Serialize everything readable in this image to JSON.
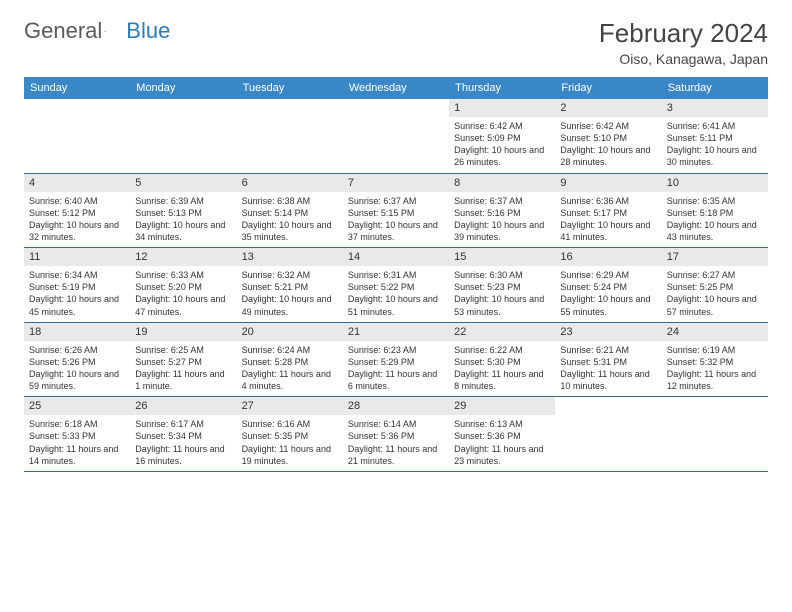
{
  "logo": {
    "text1": "General",
    "text2": "Blue"
  },
  "title": "February 2024",
  "location": "Oiso, Kanagawa, Japan",
  "colors": {
    "header_bg": "#3a87c7",
    "daynum_bg": "#e9e9e9",
    "rule": "#3a6a95",
    "logo_gray": "#5a5a5a",
    "logo_blue": "#2b7bbd"
  },
  "weekdays": [
    "Sunday",
    "Monday",
    "Tuesday",
    "Wednesday",
    "Thursday",
    "Friday",
    "Saturday"
  ],
  "weeks": [
    [
      {
        "n": "",
        "sr": "",
        "ss": "",
        "dl": ""
      },
      {
        "n": "",
        "sr": "",
        "ss": "",
        "dl": ""
      },
      {
        "n": "",
        "sr": "",
        "ss": "",
        "dl": ""
      },
      {
        "n": "",
        "sr": "",
        "ss": "",
        "dl": ""
      },
      {
        "n": "1",
        "sr": "Sunrise: 6:42 AM",
        "ss": "Sunset: 5:09 PM",
        "dl": "Daylight: 10 hours and 26 minutes."
      },
      {
        "n": "2",
        "sr": "Sunrise: 6:42 AM",
        "ss": "Sunset: 5:10 PM",
        "dl": "Daylight: 10 hours and 28 minutes."
      },
      {
        "n": "3",
        "sr": "Sunrise: 6:41 AM",
        "ss": "Sunset: 5:11 PM",
        "dl": "Daylight: 10 hours and 30 minutes."
      }
    ],
    [
      {
        "n": "4",
        "sr": "Sunrise: 6:40 AM",
        "ss": "Sunset: 5:12 PM",
        "dl": "Daylight: 10 hours and 32 minutes."
      },
      {
        "n": "5",
        "sr": "Sunrise: 6:39 AM",
        "ss": "Sunset: 5:13 PM",
        "dl": "Daylight: 10 hours and 34 minutes."
      },
      {
        "n": "6",
        "sr": "Sunrise: 6:38 AM",
        "ss": "Sunset: 5:14 PM",
        "dl": "Daylight: 10 hours and 35 minutes."
      },
      {
        "n": "7",
        "sr": "Sunrise: 6:37 AM",
        "ss": "Sunset: 5:15 PM",
        "dl": "Daylight: 10 hours and 37 minutes."
      },
      {
        "n": "8",
        "sr": "Sunrise: 6:37 AM",
        "ss": "Sunset: 5:16 PM",
        "dl": "Daylight: 10 hours and 39 minutes."
      },
      {
        "n": "9",
        "sr": "Sunrise: 6:36 AM",
        "ss": "Sunset: 5:17 PM",
        "dl": "Daylight: 10 hours and 41 minutes."
      },
      {
        "n": "10",
        "sr": "Sunrise: 6:35 AM",
        "ss": "Sunset: 5:18 PM",
        "dl": "Daylight: 10 hours and 43 minutes."
      }
    ],
    [
      {
        "n": "11",
        "sr": "Sunrise: 6:34 AM",
        "ss": "Sunset: 5:19 PM",
        "dl": "Daylight: 10 hours and 45 minutes."
      },
      {
        "n": "12",
        "sr": "Sunrise: 6:33 AM",
        "ss": "Sunset: 5:20 PM",
        "dl": "Daylight: 10 hours and 47 minutes."
      },
      {
        "n": "13",
        "sr": "Sunrise: 6:32 AM",
        "ss": "Sunset: 5:21 PM",
        "dl": "Daylight: 10 hours and 49 minutes."
      },
      {
        "n": "14",
        "sr": "Sunrise: 6:31 AM",
        "ss": "Sunset: 5:22 PM",
        "dl": "Daylight: 10 hours and 51 minutes."
      },
      {
        "n": "15",
        "sr": "Sunrise: 6:30 AM",
        "ss": "Sunset: 5:23 PM",
        "dl": "Daylight: 10 hours and 53 minutes."
      },
      {
        "n": "16",
        "sr": "Sunrise: 6:29 AM",
        "ss": "Sunset: 5:24 PM",
        "dl": "Daylight: 10 hours and 55 minutes."
      },
      {
        "n": "17",
        "sr": "Sunrise: 6:27 AM",
        "ss": "Sunset: 5:25 PM",
        "dl": "Daylight: 10 hours and 57 minutes."
      }
    ],
    [
      {
        "n": "18",
        "sr": "Sunrise: 6:26 AM",
        "ss": "Sunset: 5:26 PM",
        "dl": "Daylight: 10 hours and 59 minutes."
      },
      {
        "n": "19",
        "sr": "Sunrise: 6:25 AM",
        "ss": "Sunset: 5:27 PM",
        "dl": "Daylight: 11 hours and 1 minute."
      },
      {
        "n": "20",
        "sr": "Sunrise: 6:24 AM",
        "ss": "Sunset: 5:28 PM",
        "dl": "Daylight: 11 hours and 4 minutes."
      },
      {
        "n": "21",
        "sr": "Sunrise: 6:23 AM",
        "ss": "Sunset: 5:29 PM",
        "dl": "Daylight: 11 hours and 6 minutes."
      },
      {
        "n": "22",
        "sr": "Sunrise: 6:22 AM",
        "ss": "Sunset: 5:30 PM",
        "dl": "Daylight: 11 hours and 8 minutes."
      },
      {
        "n": "23",
        "sr": "Sunrise: 6:21 AM",
        "ss": "Sunset: 5:31 PM",
        "dl": "Daylight: 11 hours and 10 minutes."
      },
      {
        "n": "24",
        "sr": "Sunrise: 6:19 AM",
        "ss": "Sunset: 5:32 PM",
        "dl": "Daylight: 11 hours and 12 minutes."
      }
    ],
    [
      {
        "n": "25",
        "sr": "Sunrise: 6:18 AM",
        "ss": "Sunset: 5:33 PM",
        "dl": "Daylight: 11 hours and 14 minutes."
      },
      {
        "n": "26",
        "sr": "Sunrise: 6:17 AM",
        "ss": "Sunset: 5:34 PM",
        "dl": "Daylight: 11 hours and 16 minutes."
      },
      {
        "n": "27",
        "sr": "Sunrise: 6:16 AM",
        "ss": "Sunset: 5:35 PM",
        "dl": "Daylight: 11 hours and 19 minutes."
      },
      {
        "n": "28",
        "sr": "Sunrise: 6:14 AM",
        "ss": "Sunset: 5:36 PM",
        "dl": "Daylight: 11 hours and 21 minutes."
      },
      {
        "n": "29",
        "sr": "Sunrise: 6:13 AM",
        "ss": "Sunset: 5:36 PM",
        "dl": "Daylight: 11 hours and 23 minutes."
      },
      {
        "n": "",
        "sr": "",
        "ss": "",
        "dl": ""
      },
      {
        "n": "",
        "sr": "",
        "ss": "",
        "dl": ""
      }
    ]
  ]
}
